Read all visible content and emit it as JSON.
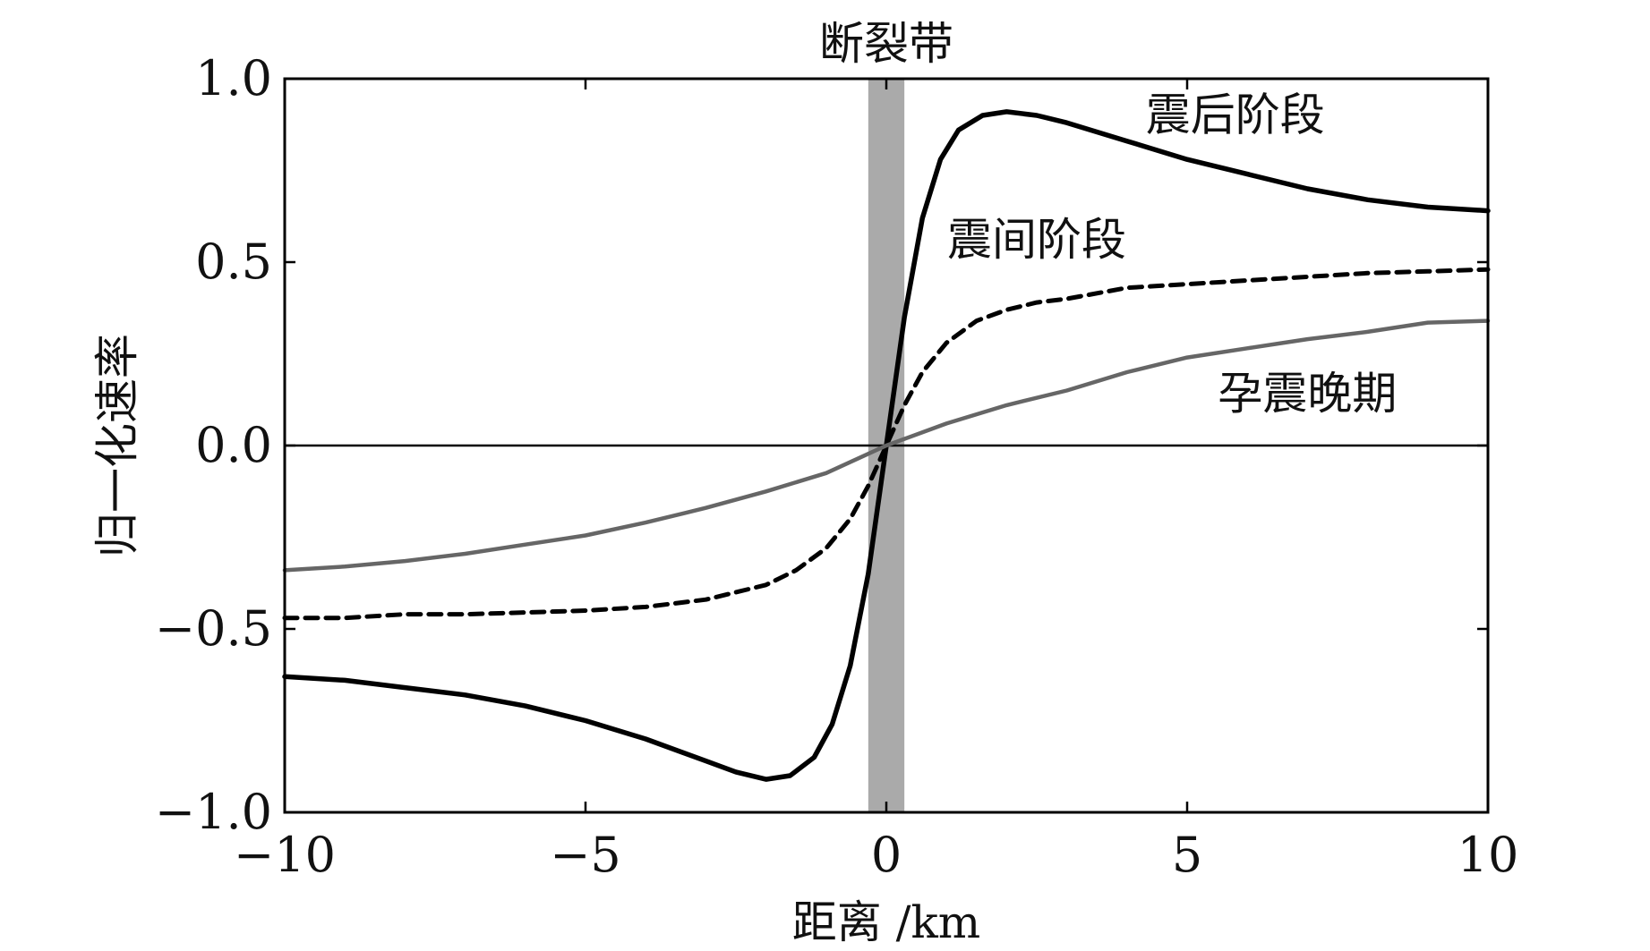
{
  "chart_data": {
    "type": "line",
    "title": "",
    "xlabel": "距离 /km",
    "ylabel": "归一化速率",
    "xlim": [
      -10,
      10
    ],
    "ylim": [
      -1.0,
      1.0
    ],
    "xticks": [
      -10,
      -5,
      0,
      5,
      10
    ],
    "xtick_labels": [
      "−10",
      "−5",
      "0",
      "5",
      "10"
    ],
    "yticks": [
      1.0,
      0.5,
      0.0,
      -0.5,
      -1.0
    ],
    "ytick_labels": [
      "1.0",
      "0.5",
      "0.0",
      "−0.5",
      "−1.0"
    ],
    "grid": false,
    "legend": "none",
    "fault_zone": {
      "label": "断裂带",
      "x_range": [
        -0.3,
        0.3
      ],
      "color": "#aaaaaa"
    },
    "series": [
      {
        "name": "震后阶段",
        "style": "solid",
        "color": "#000000",
        "points": [
          [
            -10,
            -0.63
          ],
          [
            -9,
            -0.64
          ],
          [
            -8,
            -0.66
          ],
          [
            -7,
            -0.68
          ],
          [
            -6,
            -0.71
          ],
          [
            -5,
            -0.75
          ],
          [
            -4,
            -0.8
          ],
          [
            -3,
            -0.86
          ],
          [
            -2.5,
            -0.89
          ],
          [
            -2,
            -0.91
          ],
          [
            -1.6,
            -0.9
          ],
          [
            -1.2,
            -0.85
          ],
          [
            -0.9,
            -0.76
          ],
          [
            -0.6,
            -0.6
          ],
          [
            -0.3,
            -0.35
          ],
          [
            0,
            0
          ],
          [
            0.3,
            0.35
          ],
          [
            0.6,
            0.62
          ],
          [
            0.9,
            0.78
          ],
          [
            1.2,
            0.86
          ],
          [
            1.6,
            0.9
          ],
          [
            2,
            0.91
          ],
          [
            2.5,
            0.9
          ],
          [
            3,
            0.88
          ],
          [
            4,
            0.83
          ],
          [
            5,
            0.78
          ],
          [
            6,
            0.74
          ],
          [
            7,
            0.7
          ],
          [
            8,
            0.67
          ],
          [
            9,
            0.65
          ],
          [
            10,
            0.64
          ]
        ]
      },
      {
        "name": "震间阶段",
        "style": "dashed",
        "color": "#000000",
        "points": [
          [
            -10,
            -0.47
          ],
          [
            -9,
            -0.47
          ],
          [
            -8,
            -0.46
          ],
          [
            -7,
            -0.46
          ],
          [
            -6,
            -0.455
          ],
          [
            -5,
            -0.45
          ],
          [
            -4,
            -0.44
          ],
          [
            -3,
            -0.42
          ],
          [
            -2,
            -0.38
          ],
          [
            -1.5,
            -0.34
          ],
          [
            -1,
            -0.28
          ],
          [
            -0.6,
            -0.2
          ],
          [
            -0.3,
            -0.11
          ],
          [
            0,
            0
          ],
          [
            0.3,
            0.11
          ],
          [
            0.6,
            0.2
          ],
          [
            1,
            0.28
          ],
          [
            1.5,
            0.34
          ],
          [
            2,
            0.37
          ],
          [
            2.5,
            0.39
          ],
          [
            3,
            0.4
          ],
          [
            4,
            0.43
          ],
          [
            5,
            0.44
          ],
          [
            6,
            0.45
          ],
          [
            7,
            0.46
          ],
          [
            8,
            0.47
          ],
          [
            9,
            0.475
          ],
          [
            10,
            0.48
          ]
        ]
      },
      {
        "name": "孕震晚期",
        "style": "solid",
        "color": "#666666",
        "points": [
          [
            -10,
            -0.34
          ],
          [
            -9,
            -0.33
          ],
          [
            -8,
            -0.315
          ],
          [
            -7,
            -0.295
          ],
          [
            -6,
            -0.27
          ],
          [
            -5,
            -0.245
          ],
          [
            -4,
            -0.21
          ],
          [
            -3,
            -0.17
          ],
          [
            -2,
            -0.125
          ],
          [
            -1,
            -0.075
          ],
          [
            0,
            0
          ],
          [
            1,
            0.06
          ],
          [
            2,
            0.11
          ],
          [
            3,
            0.15
          ],
          [
            4,
            0.2
          ],
          [
            5,
            0.24
          ],
          [
            6,
            0.265
          ],
          [
            7,
            0.29
          ],
          [
            8,
            0.31
          ],
          [
            9,
            0.335
          ],
          [
            10,
            0.34
          ]
        ]
      }
    ],
    "annotations": [
      {
        "text": "震后阶段",
        "x": 5.8,
        "y": 0.86
      },
      {
        "text": "震间阶段",
        "x": 2.5,
        "y": 0.52
      },
      {
        "text": "孕震晚期",
        "x": 7,
        "y": 0.1
      }
    ]
  }
}
